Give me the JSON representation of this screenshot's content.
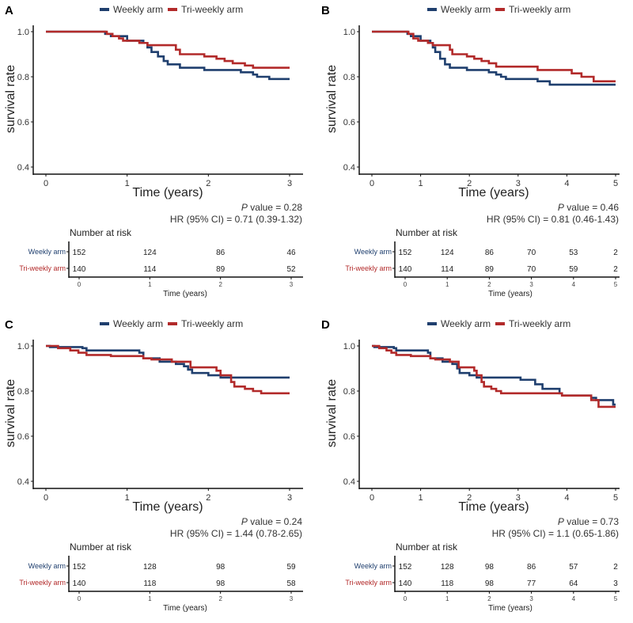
{
  "colors": {
    "weekly": "#1f3f6e",
    "triweekly": "#b22a2a",
    "axis": "#111111",
    "text": "#333333"
  },
  "chart_data": [
    {
      "type": "line",
      "panel_label": "A",
      "legend": [
        "Weekly arm",
        "Tri-weekly arm"
      ],
      "legend_placement": "top",
      "xlabel": "Time (years)",
      "ylabel": "survival rate",
      "xlim": [
        0,
        3
      ],
      "ylim": [
        0.4,
        1.0
      ],
      "xticks": [
        "0",
        "1",
        "2",
        "3"
      ],
      "yticks": [
        "0.4",
        "0.6",
        "0.8",
        "1.0"
      ],
      "p_value_label": "P",
      "p_value_text": " value = 0.28",
      "hr_text": "HR (95% CI) = 0.71 (0.39-1.32)",
      "series": [
        {
          "name": "Weekly arm",
          "x": [
            0,
            0.73,
            0.8,
            1.0,
            1.2,
            1.25,
            1.3,
            1.38,
            1.45,
            1.5,
            1.65,
            1.95,
            2.4,
            2.55,
            2.6,
            2.75,
            3
          ],
          "y": [
            1,
            0.99,
            0.98,
            0.96,
            0.95,
            0.93,
            0.91,
            0.89,
            0.87,
            0.855,
            0.84,
            0.83,
            0.82,
            0.81,
            0.8,
            0.79,
            0.79
          ]
        },
        {
          "name": "Tri-weekly arm",
          "x": [
            0,
            0.75,
            0.82,
            0.9,
            0.95,
            1.15,
            1.25,
            1.6,
            1.65,
            1.95,
            2.1,
            2.2,
            2.3,
            2.45,
            2.55,
            3
          ],
          "y": [
            1,
            0.99,
            0.98,
            0.97,
            0.96,
            0.95,
            0.94,
            0.92,
            0.9,
            0.89,
            0.88,
            0.87,
            0.86,
            0.85,
            0.84,
            0.84
          ]
        }
      ],
      "risk_table": {
        "title": "Number at risk",
        "xlabel": "Time (years)",
        "rows": [
          {
            "label": "Weekly arm",
            "values": [
              "152",
              "124",
              "86",
              "46"
            ]
          },
          {
            "label": "Tri-weekly arm",
            "values": [
              "140",
              "114",
              "89",
              "52"
            ]
          }
        ]
      }
    },
    {
      "type": "line",
      "panel_label": "B",
      "legend": [
        "Weekly arm",
        "Tri-weekly arm"
      ],
      "legend_placement": "top",
      "xlabel": "Time (years)",
      "ylabel": "survival rate",
      "xlim": [
        0,
        5
      ],
      "ylim": [
        0.4,
        1.0
      ],
      "xticks": [
        "0",
        "1",
        "2",
        "3",
        "4",
        "5"
      ],
      "yticks": [
        "0.4",
        "0.6",
        "0.8",
        "1.0"
      ],
      "p_value_label": "P",
      "p_value_text": " value = 0.46",
      "hr_text": "HR (95% CI) = 0.81 (0.46-1.43)",
      "series": [
        {
          "name": "Weekly arm",
          "x": [
            0,
            0.73,
            0.8,
            1.0,
            1.2,
            1.25,
            1.3,
            1.4,
            1.5,
            1.6,
            1.95,
            2.4,
            2.55,
            2.65,
            2.75,
            3.4,
            3.65,
            5
          ],
          "y": [
            1,
            0.99,
            0.98,
            0.96,
            0.95,
            0.93,
            0.91,
            0.88,
            0.855,
            0.84,
            0.83,
            0.82,
            0.81,
            0.8,
            0.79,
            0.78,
            0.765,
            0.765
          ]
        },
        {
          "name": "Tri-weekly arm",
          "x": [
            0,
            0.75,
            0.85,
            0.95,
            1.15,
            1.25,
            1.6,
            1.65,
            1.95,
            2.1,
            2.25,
            2.4,
            2.55,
            3.4,
            4.1,
            4.3,
            4.55,
            5
          ],
          "y": [
            1,
            0.99,
            0.97,
            0.96,
            0.95,
            0.94,
            0.92,
            0.9,
            0.89,
            0.88,
            0.87,
            0.86,
            0.845,
            0.83,
            0.815,
            0.8,
            0.78,
            0.78
          ]
        }
      ],
      "risk_table": {
        "title": "Number at risk",
        "xlabel": "Time (years)",
        "rows": [
          {
            "label": "Weekly arm",
            "values": [
              "152",
              "124",
              "86",
              "70",
              "53",
              "2"
            ]
          },
          {
            "label": "Tri-weekly arm",
            "values": [
              "140",
              "114",
              "89",
              "70",
              "59",
              "2"
            ]
          }
        ]
      }
    },
    {
      "type": "line",
      "panel_label": "C",
      "legend": [
        "Weekly arm",
        "Tri-weekly arm"
      ],
      "legend_placement": "top",
      "xlabel": "Time (years)",
      "ylabel": "survival rate",
      "xlim": [
        0,
        3
      ],
      "ylim": [
        0.4,
        1.0
      ],
      "xticks": [
        "0",
        "1",
        "2",
        "3"
      ],
      "yticks": [
        "0.4",
        "0.6",
        "0.8",
        "1.0"
      ],
      "p_value_label": "P",
      "p_value_text": " value = 0.24",
      "hr_text": "HR (95% CI) = 1.44 (0.78-2.65)",
      "series": [
        {
          "name": "Weekly arm",
          "x": [
            0,
            0.05,
            0.45,
            0.5,
            1.15,
            1.2,
            1.4,
            1.6,
            1.7,
            1.75,
            1.8,
            2.0,
            2.15,
            3
          ],
          "y": [
            1,
            0.995,
            0.99,
            0.98,
            0.97,
            0.945,
            0.93,
            0.92,
            0.91,
            0.895,
            0.88,
            0.87,
            0.86,
            0.86
          ]
        },
        {
          "name": "Tri-weekly arm",
          "x": [
            0,
            0.15,
            0.3,
            0.4,
            0.5,
            0.8,
            1.2,
            1.3,
            1.55,
            1.78,
            2.1,
            2.15,
            2.28,
            2.32,
            2.45,
            2.55,
            2.65,
            3
          ],
          "y": [
            1,
            0.99,
            0.98,
            0.97,
            0.96,
            0.955,
            0.945,
            0.94,
            0.93,
            0.905,
            0.89,
            0.87,
            0.84,
            0.82,
            0.81,
            0.8,
            0.79,
            0.79
          ]
        }
      ],
      "risk_table": {
        "title": "Number at risk",
        "xlabel": "Time (years)",
        "rows": [
          {
            "label": "Weekly arm",
            "values": [
              "152",
              "128",
              "98",
              "59"
            ]
          },
          {
            "label": "Tri-weekly arm",
            "values": [
              "140",
              "118",
              "98",
              "58"
            ]
          }
        ]
      }
    },
    {
      "type": "line",
      "panel_label": "D",
      "legend": [
        "Weekly arm",
        "Tri-weekly arm"
      ],
      "legend_placement": "top",
      "xlabel": "Time (years)",
      "ylabel": "survival rate",
      "xlim": [
        0,
        5
      ],
      "ylim": [
        0.4,
        1.0
      ],
      "xticks": [
        "0",
        "1",
        "2",
        "3",
        "4",
        "5"
      ],
      "yticks": [
        "0.4",
        "0.6",
        "0.8",
        "1.0"
      ],
      "p_value_label": "P",
      "p_value_text": " value = 0.73",
      "hr_text": "HR (95% CI) = 1.1 (0.65-1.86)",
      "series": [
        {
          "name": "Weekly arm",
          "x": [
            0,
            0.05,
            0.45,
            0.5,
            1.15,
            1.2,
            1.45,
            1.65,
            1.75,
            1.8,
            2.0,
            2.15,
            3.05,
            3.35,
            3.5,
            3.85,
            3.9,
            4.5,
            4.6,
            4.95,
            5
          ],
          "y": [
            1,
            0.995,
            0.99,
            0.98,
            0.97,
            0.945,
            0.93,
            0.92,
            0.9,
            0.88,
            0.87,
            0.86,
            0.85,
            0.83,
            0.81,
            0.79,
            0.78,
            0.77,
            0.76,
            0.74,
            0.74
          ]
        },
        {
          "name": "Tri-weekly arm",
          "x": [
            0,
            0.15,
            0.3,
            0.4,
            0.5,
            0.8,
            1.2,
            1.3,
            1.6,
            1.78,
            2.1,
            2.15,
            2.25,
            2.3,
            2.45,
            2.55,
            2.65,
            3.9,
            4.5,
            4.65,
            5
          ],
          "y": [
            1,
            0.99,
            0.98,
            0.97,
            0.96,
            0.955,
            0.945,
            0.94,
            0.93,
            0.905,
            0.89,
            0.87,
            0.84,
            0.82,
            0.81,
            0.8,
            0.79,
            0.78,
            0.76,
            0.73,
            0.73
          ]
        }
      ],
      "risk_table": {
        "title": "Number at risk",
        "xlabel": "Time (years)",
        "rows": [
          {
            "label": "Weekly arm",
            "values": [
              "152",
              "128",
              "98",
              "86",
              "57",
              "2"
            ]
          },
          {
            "label": "Tri-weekly arm",
            "values": [
              "140",
              "118",
              "98",
              "77",
              "64",
              "3"
            ]
          }
        ]
      }
    }
  ]
}
